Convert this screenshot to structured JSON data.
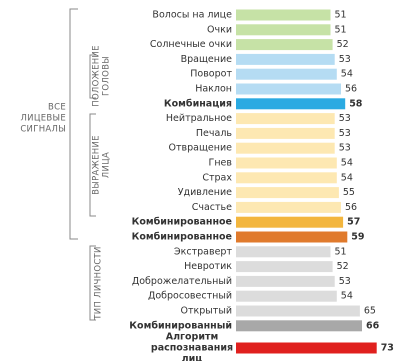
{
  "chart_data": {
    "type": "barh",
    "categories": [
      "Волосы на лице",
      "Очки",
      "Солнечные очки",
      "Вращение",
      "Поворот",
      "Наклон",
      "Комбинация",
      "Нейтральное",
      "Печаль",
      "Отвращение",
      "Гнев",
      "Страх",
      "Удивление",
      "Счастье",
      "Комбинированное",
      "Комбинированное",
      "Экстраверт",
      "Невротик",
      "Доброжелательный",
      "Добросовестный",
      "Открытый",
      "Комбинированный",
      [
        "Алгоритм",
        "распознавания",
        "лиц"
      ]
    ],
    "values": [
      51,
      51,
      52,
      53,
      54,
      56,
      58,
      53,
      53,
      53,
      54,
      54,
      55,
      56,
      57,
      59,
      51,
      52,
      53,
      54,
      65,
      66,
      73
    ],
    "colors": [
      "#c6e2a6",
      "#c6e2a6",
      "#c6e2a6",
      "#b5dcf3",
      "#b5dcf3",
      "#b5dcf3",
      "#2aaae2",
      "#fde8b2",
      "#fde8b2",
      "#fde8b2",
      "#fde8b2",
      "#fde8b2",
      "#fde8b2",
      "#fde8b2",
      "#f3b63e",
      "#e07a2c",
      "#dcdcdc",
      "#dcdcdc",
      "#dcdcdc",
      "#dcdcdc",
      "#dcdcdc",
      "#a8a8a8",
      "#e0201e"
    ],
    "bold": [
      false,
      false,
      false,
      false,
      false,
      false,
      true,
      false,
      false,
      false,
      false,
      false,
      false,
      false,
      true,
      true,
      false,
      false,
      false,
      false,
      false,
      true,
      true
    ],
    "xlim": [
      6,
      76
    ],
    "groups": {
      "all": [
        "ВСЕ",
        "ЛИЦЕВЫЕ",
        "СИГНАЛЫ"
      ],
      "head": [
        "ПОЛОЖЕНИЕ",
        "ГОЛОВЫ"
      ],
      "expression": [
        "ВЫРАЖЕНИЕ",
        "ЛИЦА"
      ],
      "personality": [
        "ТИП ЛИЧНОСТИ"
      ]
    }
  }
}
